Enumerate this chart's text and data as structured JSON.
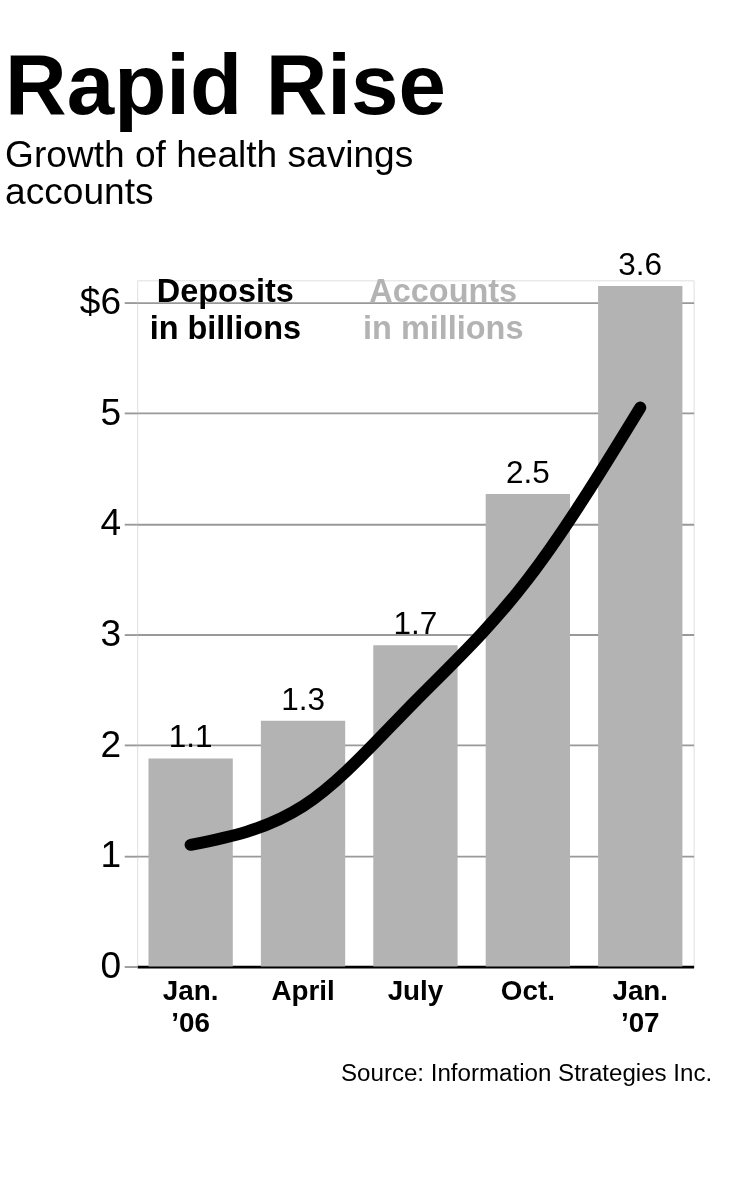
{
  "chart_data": {
    "type": "bar",
    "title": "Rapid Rise",
    "subtitle": "Growth of health savings accounts",
    "categories": [
      "Jan. ’06",
      "April",
      "July",
      "Oct.",
      "Jan. ’07"
    ],
    "series": [
      {
        "name": "Deposits in billions",
        "type": "line",
        "color": "#000000",
        "values": [
          1.1,
          1.45,
          2.4,
          3.5,
          5.05
        ]
      },
      {
        "name": "Accounts in millions",
        "axis": "y2",
        "color": "#b3b3b3",
        "values": [
          1.1,
          1.3,
          1.7,
          2.5,
          3.6
        ],
        "value_labels": [
          "1.1",
          "1.3",
          "1.7",
          "2.5",
          "3.6"
        ]
      }
    ],
    "ylim": [
      0,
      6.2
    ],
    "yticks": [
      0,
      1,
      2,
      3,
      4,
      5,
      {
        "value": 6,
        "label": "$6"
      }
    ],
    "y2lim": [
      0,
      3.63
    ],
    "tick_labels": "y",
    "grid": "y",
    "annotations": [
      "Source: Information Strategies Inc."
    ]
  }
}
